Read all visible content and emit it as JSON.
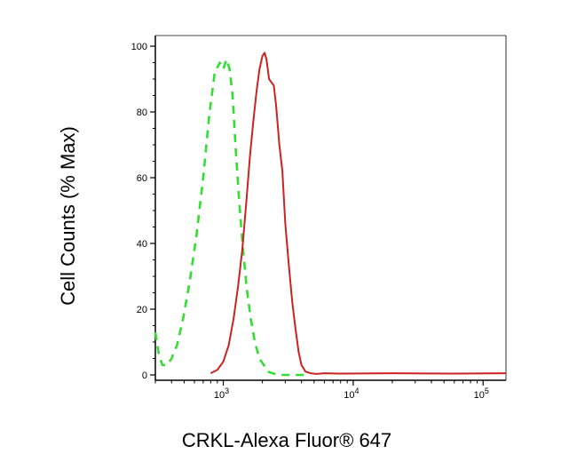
{
  "chart_data": {
    "type": "line",
    "xlabel": "CRKL-Alexa Fluor® 647",
    "ylabel": "Cell Counts (% Max)",
    "x_scale": "log",
    "xlim": [
      300,
      150000
    ],
    "ylim": [
      0,
      100
    ],
    "y_ticks": [
      {
        "value": 0,
        "label": "0"
      },
      {
        "value": 20,
        "label": "20"
      },
      {
        "value": 40,
        "label": "40"
      },
      {
        "value": 60,
        "label": "60"
      },
      {
        "value": 80,
        "label": "80"
      },
      {
        "value": 100,
        "label": "100"
      }
    ],
    "x_major_ticks": [
      {
        "value": 1000,
        "base": "10",
        "exp": "3"
      },
      {
        "value": 10000,
        "base": "10",
        "exp": "4"
      },
      {
        "value": 100000,
        "base": "10",
        "exp": "5"
      }
    ],
    "grid": false,
    "legend": "none",
    "series": [
      {
        "style": "dashed",
        "color": "#33dd33",
        "x": [
          300,
          320,
          340,
          370,
          400,
          440,
          490,
          550,
          620,
          700,
          780,
          860,
          940,
          1000,
          1060,
          1120,
          1180,
          1250,
          1330,
          1420,
          1520,
          1630,
          1750,
          1900,
          2050,
          2200,
          2400,
          2700,
          3100,
          3600,
          4500
        ],
        "y": [
          13,
          6,
          3,
          3,
          5,
          9,
          17,
          28,
          42,
          60,
          79,
          92,
          95,
          93,
          96,
          93,
          85,
          68,
          52,
          38,
          26,
          17,
          10,
          5,
          3,
          1,
          0.5,
          0,
          0,
          0,
          0
        ]
      },
      {
        "style": "solid",
        "color": "#cc2222",
        "x": [
          800,
          900,
          1000,
          1100,
          1200,
          1300,
          1400,
          1500,
          1600,
          1700,
          1800,
          1900,
          2000,
          2080,
          2150,
          2250,
          2350,
          2450,
          2550,
          2700,
          2850,
          3000,
          3200,
          3400,
          3600,
          3800,
          4000,
          4300,
          4700,
          5200,
          6000,
          8000,
          20000,
          60000,
          150000
        ],
        "y": [
          0.5,
          1.5,
          4,
          9,
          17,
          27,
          38,
          52,
          66,
          77,
          86,
          93,
          97,
          98,
          96,
          90,
          89,
          88,
          82,
          70,
          62,
          46,
          33,
          22,
          14,
          7,
          3,
          1,
          0.5,
          0.3,
          0.5,
          0.4,
          0.5,
          0.4,
          0.5
        ]
      }
    ]
  }
}
